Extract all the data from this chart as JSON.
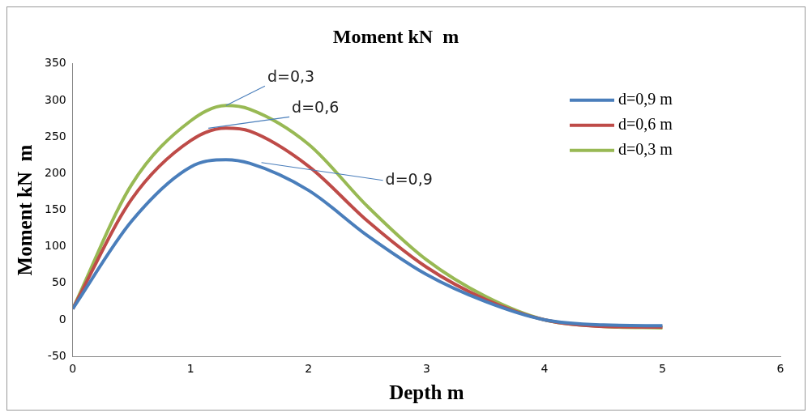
{
  "chart_data": {
    "type": "line",
    "title": "Moment kN  m",
    "xlabel": "Depth m",
    "ylabel": "Moment kN  m",
    "xlim": [
      0,
      6
    ],
    "xticks": [
      0,
      1,
      2,
      3,
      4,
      5,
      6
    ],
    "ylim": [
      -50,
      350
    ],
    "yticks": [
      -50,
      0,
      50,
      100,
      150,
      200,
      250,
      300,
      350
    ],
    "grid": false,
    "legend": "top right",
    "marker": "none",
    "line_style": "solid",
    "series": [
      {
        "name": "d=0,9 m",
        "color": "#4a7ebb",
        "x": [
          0,
          0.5,
          1,
          1.3,
          1.5,
          2,
          2.5,
          3,
          3.5,
          4,
          4.5,
          5
        ],
        "values": [
          15,
          135,
          209,
          219,
          214,
          177,
          115,
          62,
          25,
          0,
          -7,
          -8
        ]
      },
      {
        "name": "d=0,6 m",
        "color": "#be4b48",
        "x": [
          0,
          0.5,
          1,
          1.3,
          1.5,
          2,
          2.5,
          3,
          3.5,
          4,
          4.5,
          5
        ],
        "values": [
          15,
          165,
          245,
          262,
          258,
          210,
          135,
          72,
          28,
          0,
          -9,
          -10
        ]
      },
      {
        "name": "d=0,3 m",
        "color": "#98b954",
        "x": [
          0,
          0.5,
          1,
          1.3,
          1.5,
          2,
          2.5,
          3,
          3.5,
          4,
          4.5,
          5
        ],
        "values": [
          15,
          185,
          272,
          293,
          288,
          240,
          155,
          82,
          32,
          0,
          -9,
          -11
        ]
      }
    ],
    "annotations": [
      {
        "text": "d=0,3",
        "x": 1.3,
        "y": 293
      },
      {
        "text": "d=0,6",
        "x": 1.15,
        "y": 262
      },
      {
        "text": "d=0,9",
        "x": 1.6,
        "y": 215
      }
    ]
  }
}
